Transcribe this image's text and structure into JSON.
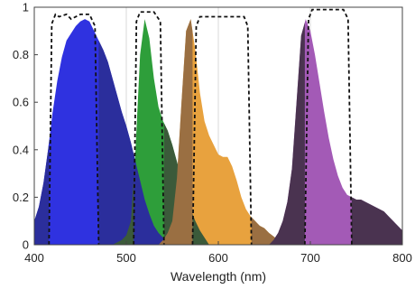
{
  "chart_data": {
    "type": "area",
    "xlabel": "Wavelength (nm)",
    "ylabel": "",
    "xlim": [
      400,
      800
    ],
    "ylim": [
      0,
      1
    ],
    "x_ticks": [
      400,
      500,
      600,
      700,
      800
    ],
    "y_ticks": [
      0,
      0.2,
      0.4,
      0.6,
      0.8,
      1
    ],
    "y_tick_labels": [
      "0",
      "0.2",
      "0.4",
      "0.6",
      "0.8",
      "1"
    ],
    "grid": "vertical lines at 500, 600, 700",
    "series": [
      {
        "kind": "emission",
        "color": "#2f32e0",
        "overlap_color": "#2b2e9c",
        "x": [
          400,
          405,
          410,
          415,
          420,
          425,
          430,
          435,
          440,
          445,
          450,
          455,
          460,
          465,
          470,
          475,
          480,
          485,
          490,
          495,
          500,
          505,
          510,
          515,
          520,
          525,
          530,
          535,
          540,
          545,
          550,
          555
        ],
        "y": [
          0.1,
          0.16,
          0.26,
          0.4,
          0.56,
          0.69,
          0.79,
          0.86,
          0.89,
          0.92,
          0.94,
          0.95,
          0.94,
          0.9,
          0.86,
          0.82,
          0.77,
          0.7,
          0.63,
          0.56,
          0.5,
          0.43,
          0.35,
          0.27,
          0.19,
          0.13,
          0.08,
          0.05,
          0.03,
          0.015,
          0.005,
          0
        ]
      },
      {
        "kind": "emission",
        "color": "#2e9e3a",
        "overlap_color": "#3b5a3a",
        "x": [
          485,
          490,
          495,
          500,
          505,
          510,
          515,
          520,
          525,
          530,
          535,
          540,
          545,
          550,
          555,
          560,
          565,
          570,
          575,
          580,
          585,
          590
        ],
        "y": [
          0,
          0.01,
          0.02,
          0.04,
          0.1,
          0.4,
          0.8,
          0.95,
          0.87,
          0.7,
          0.58,
          0.52,
          0.48,
          0.42,
          0.35,
          0.28,
          0.21,
          0.15,
          0.1,
          0.06,
          0.03,
          0
        ]
      },
      {
        "kind": "emission",
        "color": "#e8a23e",
        "overlap_color": "#9a6f42",
        "x": [
          535,
          540,
          545,
          550,
          555,
          560,
          565,
          570,
          575,
          580,
          585,
          590,
          595,
          600,
          605,
          610,
          615,
          620,
          625,
          630,
          635,
          640,
          645,
          650,
          655,
          660,
          665,
          670
        ],
        "y": [
          0,
          0.02,
          0.05,
          0.1,
          0.28,
          0.6,
          0.9,
          0.95,
          0.82,
          0.64,
          0.52,
          0.46,
          0.42,
          0.38,
          0.37,
          0.37,
          0.33,
          0.27,
          0.2,
          0.15,
          0.12,
          0.1,
          0.08,
          0.07,
          0.05,
          0.035,
          0.02,
          0
        ]
      },
      {
        "kind": "emission",
        "color": "#a35ab6",
        "overlap_color": "#4a3350",
        "x": [
          655,
          660,
          665,
          670,
          675,
          680,
          685,
          690,
          695,
          700,
          705,
          710,
          715,
          720,
          725,
          730,
          735,
          740,
          745,
          750,
          755,
          760,
          765,
          770,
          775,
          780,
          785,
          790,
          795,
          800
        ],
        "y": [
          0,
          0.02,
          0.05,
          0.1,
          0.18,
          0.32,
          0.6,
          0.88,
          0.95,
          0.9,
          0.8,
          0.68,
          0.56,
          0.45,
          0.36,
          0.29,
          0.24,
          0.21,
          0.2,
          0.19,
          0.19,
          0.18,
          0.17,
          0.16,
          0.15,
          0.14,
          0.12,
          0.1,
          0.08,
          0.06
        ]
      }
    ],
    "filters": [
      {
        "x": [
          416,
          419,
          423,
          427,
          435,
          440,
          445,
          450,
          460,
          466,
          470
        ],
        "y": [
          0,
          0.93,
          0.97,
          0.96,
          0.97,
          0.95,
          0.96,
          0.97,
          0.97,
          0.92,
          0
        ]
      },
      {
        "x": [
          508,
          511,
          515,
          530,
          537,
          541
        ],
        "y": [
          0,
          0.94,
          0.98,
          0.98,
          0.94,
          0
        ]
      },
      {
        "x": [
          572,
          576,
          580,
          628,
          632,
          636
        ],
        "y": [
          0,
          0.92,
          0.96,
          0.96,
          0.92,
          0
        ]
      },
      {
        "x": [
          694,
          698,
          702,
          736,
          741,
          745
        ],
        "y": [
          0,
          0.95,
          0.99,
          0.99,
          0.95,
          0
        ]
      }
    ]
  }
}
